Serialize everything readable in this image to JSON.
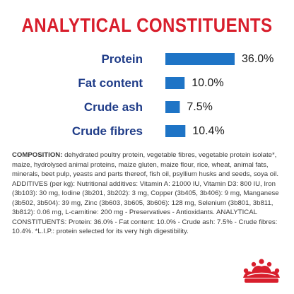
{
  "colors": {
    "title": "#d81e2c",
    "label": "#1f3c88",
    "bar": "#1e74c6",
    "value": "#1a1a1a",
    "logo": "#d81e2c"
  },
  "title": "ANALYTICAL CONSTITUENTS",
  "chart_data": {
    "type": "bar",
    "orientation": "horizontal",
    "categories": [
      "Protein",
      "Fat content",
      "Crude ash",
      "Crude fibres"
    ],
    "values": [
      36.0,
      10.0,
      7.5,
      10.4
    ],
    "value_labels": [
      "36.0%",
      "10.0%",
      "7.5%",
      "10.4%"
    ],
    "title": "ANALYTICAL CONSTITUENTS",
    "xlabel": "",
    "ylabel": "",
    "xlim": [
      0,
      36.0
    ],
    "grid": false
  },
  "composition": {
    "label": "COMPOSITION:",
    "text": " dehydrated poultry protein, vegetable fibres, vegetable protein isolate*, maize, hydrolysed animal proteins, maize gluten, maize flour, rice, wheat, animal fats, minerals, beet pulp, yeasts and parts thereof, fish oil, psyllium husks and seeds, soya oil. ADDITIVES (per kg): Nutritional additives: Vitamin A: 21000 IU, Vitamin D3: 800 IU, Iron (3b103): 30 mg, Iodine (3b201, 3b202): 3 mg, Copper (3b405, 3b406): 9 mg, Manganese (3b502, 3b504): 39 mg, Zinc (3b603, 3b605, 3b606): 128 mg, Selenium (3b801, 3b811, 3b812): 0.06 mg, L-carnitine: 200 mg - Preservatives - Antioxidants. ANALYTICAL CONSTITUENTS: Protein: 36.0% - Fat content: 10.0% - Crude ash: 7.5% - Crude fibres: 10.4%. *L.I.P.: protein selected for its very high digestibility."
  },
  "logo": {
    "icon": "crown-icon"
  }
}
